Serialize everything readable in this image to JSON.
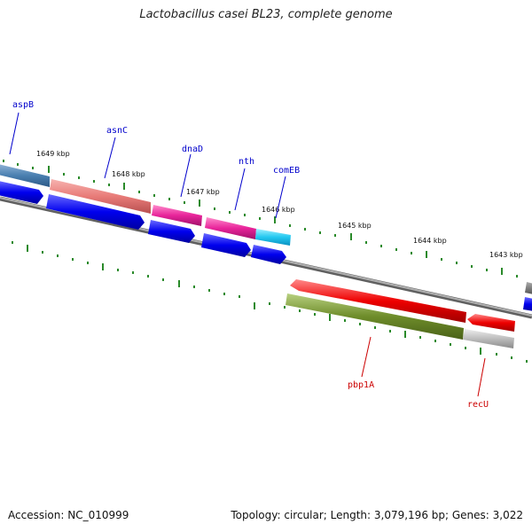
{
  "title": "Lactobacillus casei BL23, complete genome",
  "accession": "Accession: NC_010999",
  "topology": "Topology: circular; Length: 3,079,196 bp; Genes: 3,022",
  "kbp_labels": [
    "1649 kbp",
    "1648 kbp",
    "1647 kbp",
    "1646 kbp",
    "1645 kbp",
    "1644 kbp",
    "1643 kbp"
  ],
  "gene_labels_top": [
    "aspB",
    "asnC",
    "dnaD",
    "nth",
    "comEB"
  ],
  "gene_labels_bottom": [
    "pbp1A",
    "recU"
  ],
  "colors": {
    "label_top": "#0000cc",
    "label_bottom": "#cc0000",
    "ticks": "#2a8a2a",
    "backbone": "#808080",
    "cds": "#0000ee"
  }
}
